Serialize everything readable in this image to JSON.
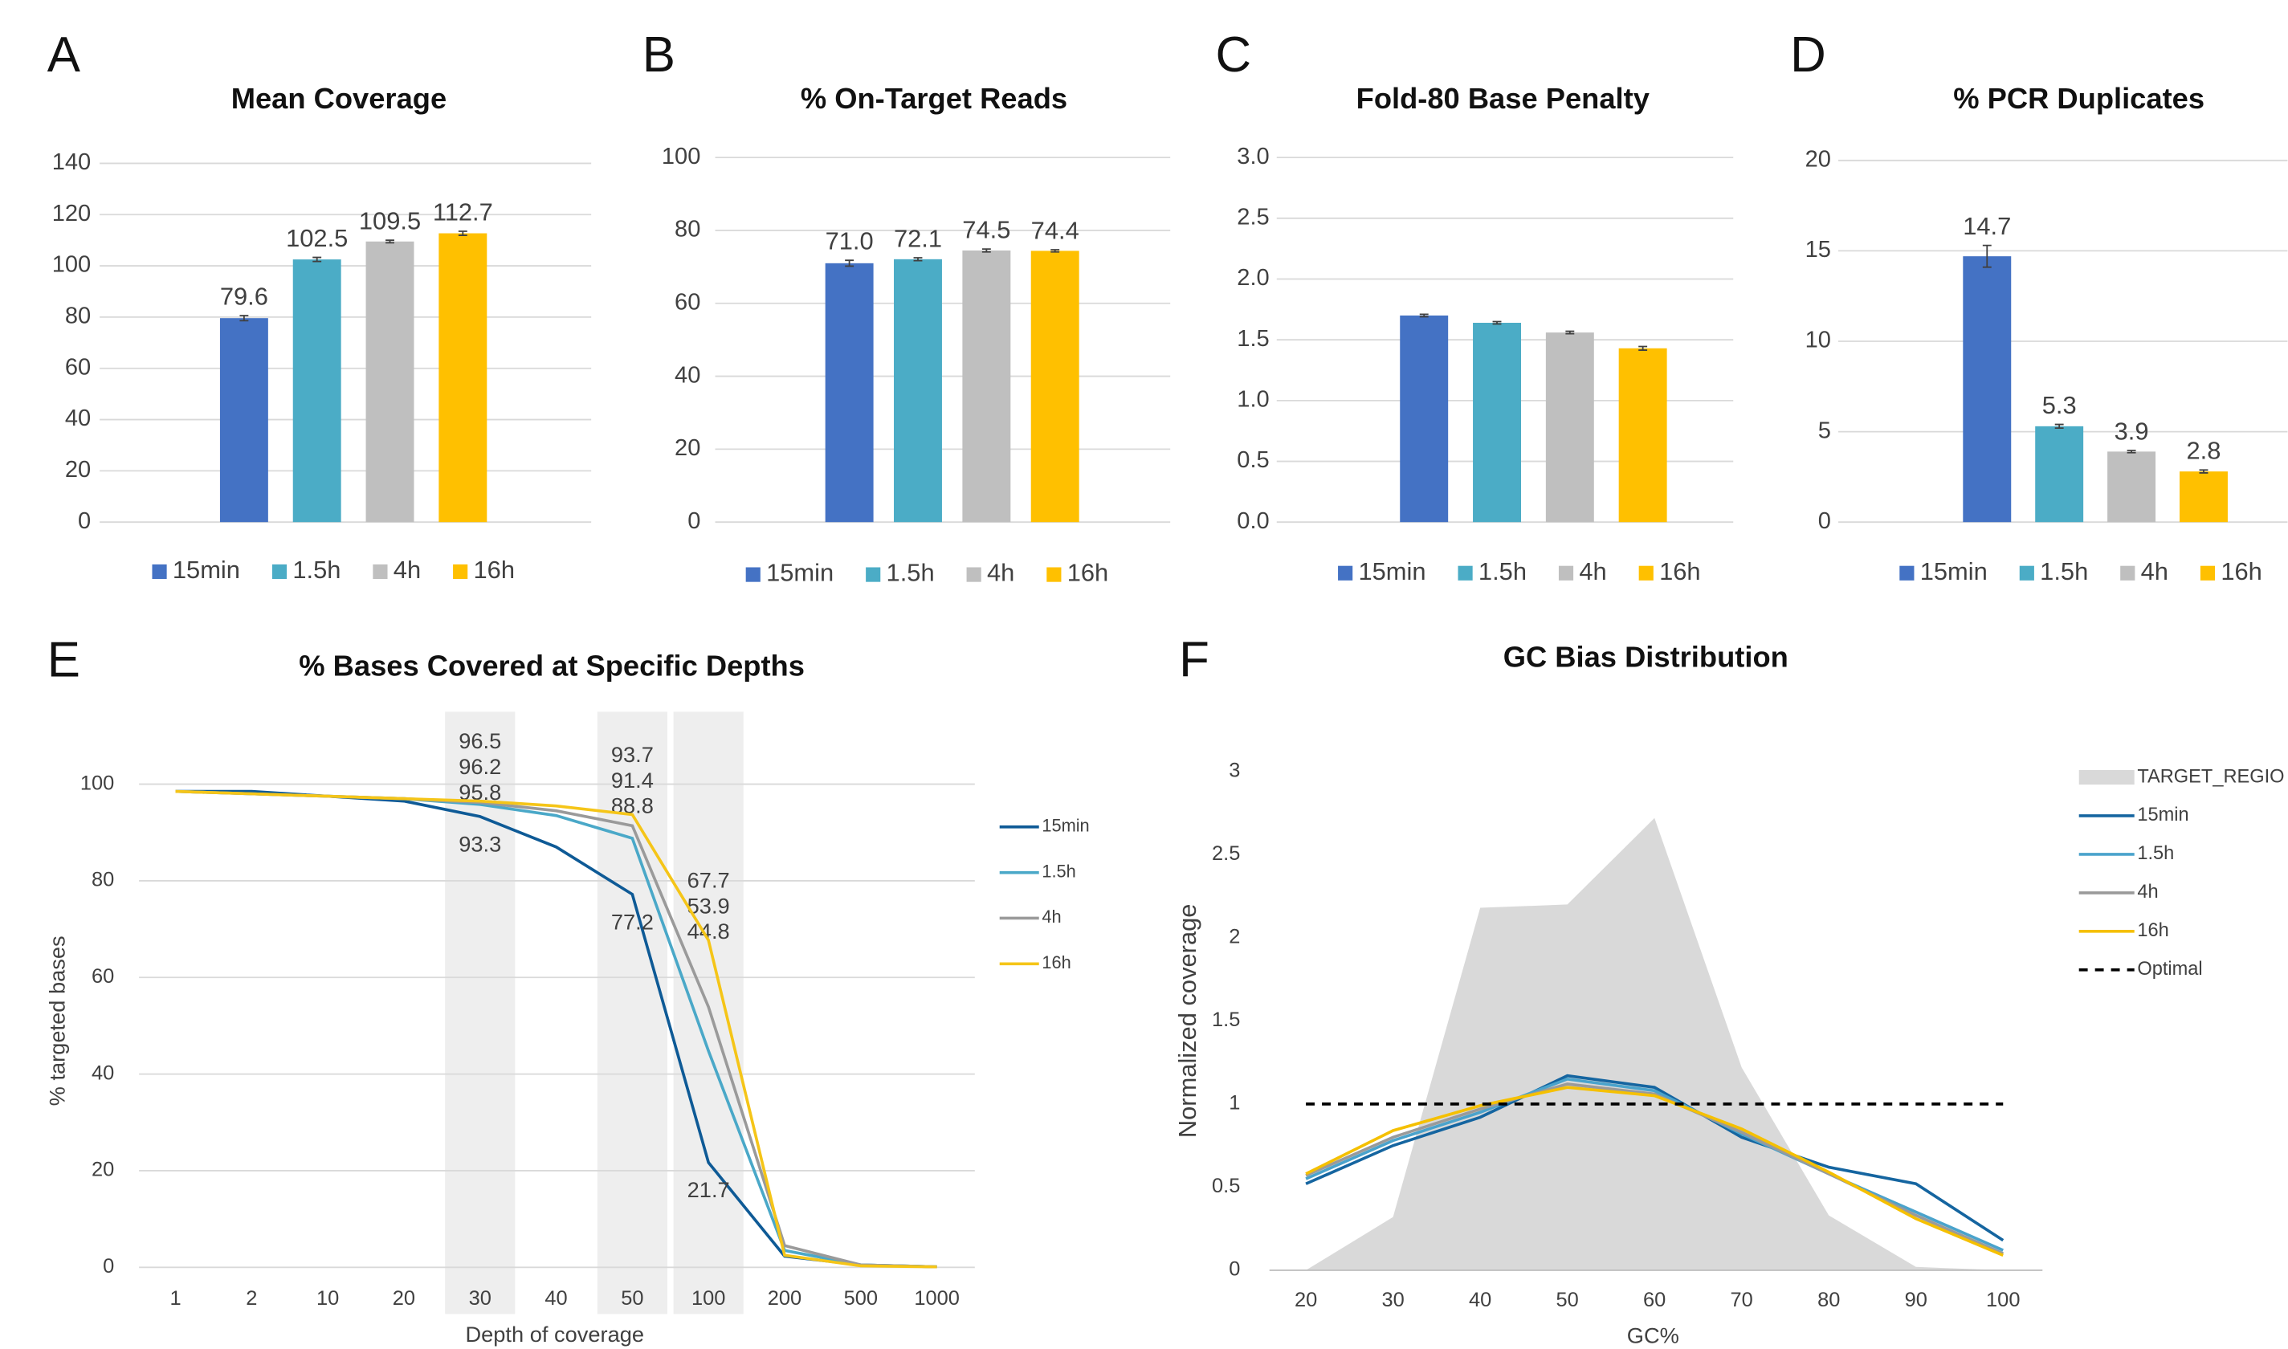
{
  "chart_data": [
    {
      "type": "bar",
      "label": "A",
      "title": "Mean Coverage",
      "categories": [
        "15min",
        "1.5h",
        "4h",
        "16h"
      ],
      "values": [
        79.6,
        102.5,
        109.5,
        112.7
      ],
      "errors": [
        1.0,
        0.8,
        0.5,
        0.8
      ],
      "data_labels": true,
      "colors": [
        "#4472c4",
        "#4bacc6",
        "#bfbfbf",
        "#ffc000"
      ],
      "ylim": [
        0,
        140
      ],
      "yticks": [
        0,
        20,
        40,
        60,
        80,
        100,
        120,
        140
      ],
      "grid": true
    },
    {
      "type": "bar",
      "label": "B",
      "title": "% On-Target Reads",
      "categories": [
        "15min",
        "1.5h",
        "4h",
        "16h"
      ],
      "values": [
        71.0,
        72.1,
        74.5,
        74.4
      ],
      "value_labels": [
        "71.0",
        "72.1",
        "74.5",
        "74.4"
      ],
      "errors": [
        0.8,
        0.4,
        0.4,
        0.3
      ],
      "data_labels": true,
      "colors": [
        "#4472c4",
        "#4bacc6",
        "#bfbfbf",
        "#ffc000"
      ],
      "ylim": [
        0,
        100
      ],
      "yticks": [
        0,
        20,
        40,
        60,
        80,
        100
      ],
      "grid": true
    },
    {
      "type": "bar",
      "label": "C",
      "title": "Fold-80 Base Penalty",
      "categories": [
        "15min",
        "1.5h",
        "4h",
        "16h"
      ],
      "values": [
        1.7,
        1.64,
        1.56,
        1.43
      ],
      "errors": [
        0.01,
        0.01,
        0.01,
        0.015
      ],
      "data_labels": false,
      "colors": [
        "#4472c4",
        "#4bacc6",
        "#bfbfbf",
        "#ffc000"
      ],
      "ylim": [
        0,
        3
      ],
      "yticks": [
        {
          "value": 0,
          "label": "0.0"
        },
        {
          "value": 0.5,
          "label": "0.5"
        },
        {
          "value": 1,
          "label": "1.0"
        },
        {
          "value": 1.5,
          "label": "1.5"
        },
        {
          "value": 2,
          "label": "2.0"
        },
        {
          "value": 2.5,
          "label": "2.5"
        },
        {
          "value": 3,
          "label": "3.0"
        }
      ],
      "grid": true
    },
    {
      "type": "bar",
      "label": "D",
      "title": "% PCR Duplicates",
      "categories": [
        "15min",
        "1.5h",
        "4h",
        "16h"
      ],
      "values": [
        14.7,
        5.3,
        3.9,
        2.8
      ],
      "errors": [
        0.6,
        0.1,
        0.06,
        0.08
      ],
      "data_labels": true,
      "colors": [
        "#4472c4",
        "#4bacc6",
        "#bfbfbf",
        "#ffc000"
      ],
      "ylim": [
        0,
        20
      ],
      "yticks": [
        0,
        5,
        10,
        15,
        20
      ],
      "grid": true
    },
    {
      "type": "line",
      "label": "E",
      "title": "% Bases Covered at Specific Depths",
      "x_label": "Depth of coverage",
      "y_label": "% targeted bases",
      "categories": [
        "1",
        "2",
        "10",
        "20",
        "30",
        "40",
        "50",
        "100",
        "200",
        "500",
        "1000"
      ],
      "series": [
        {
          "name": "15min",
          "color": "#0e5a96",
          "label_color": "#0e5a96",
          "values": [
            98.5,
            98.5,
            97.5,
            96.5,
            93.3,
            87,
            77.2,
            21.7,
            2.3,
            0.5,
            0.1
          ],
          "value_labels": [
            null,
            null,
            null,
            null,
            "93.3",
            null,
            "77.2",
            "21.7",
            null,
            null,
            null
          ]
        },
        {
          "name": "1.5h",
          "color": "#4aa8c8",
          "label_color": "#19a8be",
          "values": [
            98.5,
            98,
            97.5,
            97,
            95.8,
            93.5,
            88.8,
            44.8,
            3.5,
            0.5,
            0.1
          ],
          "value_labels": [
            null,
            null,
            null,
            null,
            "95.8",
            null,
            "88.8",
            "44.8",
            null,
            null,
            null
          ]
        },
        {
          "name": "4h",
          "color": "#9a9a9a",
          "label_color": "#777777",
          "values": [
            98.5,
            98,
            97.5,
            97,
            96.2,
            94.5,
            91.4,
            53.9,
            4.5,
            0.5,
            0.1
          ],
          "value_labels": [
            null,
            null,
            null,
            null,
            "96.2",
            null,
            "91.4",
            "53.9",
            null,
            null,
            null
          ]
        },
        {
          "name": "16h",
          "color": "#f5c518",
          "label_color": "#f29b2a",
          "values": [
            98.5,
            98,
            97.5,
            97,
            96.5,
            95.5,
            93.7,
            67.7,
            2.5,
            0.3,
            0.1
          ],
          "value_labels": [
            null,
            null,
            null,
            null,
            "96.5",
            null,
            "93.7",
            "67.7",
            null,
            null,
            null
          ]
        }
      ],
      "ylim": [
        0,
        115
      ],
      "yticks": [
        0,
        20,
        40,
        60,
        80,
        100
      ],
      "grid": true,
      "legend": "right"
    },
    {
      "type": "line",
      "label": "F",
      "title": "GC Bias Distribution",
      "x_label": "GC%",
      "y_label": "Normalized coverage",
      "x": [
        20,
        30,
        40,
        50,
        60,
        70,
        80,
        90,
        100
      ],
      "xlim": [
        20,
        100
      ],
      "xticks": [
        20,
        30,
        40,
        50,
        60,
        70,
        80,
        90,
        100
      ],
      "series": [
        {
          "name": "TARGET_REGIO",
          "color": "#d9d9d9",
          "style": "area",
          "values": [
            0,
            0.32,
            2.18,
            2.2,
            2.72,
            1.22,
            0.33,
            0.02,
            0
          ]
        },
        {
          "name": "15min",
          "color": "#1565a0",
          "style": "solid",
          "values": [
            0.52,
            0.75,
            0.92,
            1.17,
            1.1,
            0.8,
            0.62,
            0.52,
            0.18
          ]
        },
        {
          "name": "1.5h",
          "color": "#4aa3cc",
          "style": "solid",
          "values": [
            0.55,
            0.78,
            0.95,
            1.15,
            1.08,
            0.82,
            0.58,
            0.35,
            0.12
          ]
        },
        {
          "name": "4h",
          "color": "#9a9a9a",
          "style": "solid",
          "values": [
            0.57,
            0.8,
            0.97,
            1.12,
            1.06,
            0.83,
            0.58,
            0.33,
            0.1
          ]
        },
        {
          "name": "16h",
          "color": "#f5c000",
          "style": "solid",
          "values": [
            0.58,
            0.84,
            0.99,
            1.1,
            1.05,
            0.85,
            0.59,
            0.31,
            0.09
          ]
        },
        {
          "name": "Optimal",
          "color": "#000000",
          "style": "dashed",
          "values": [
            1,
            1,
            1,
            1,
            1,
            1,
            1,
            1,
            1
          ]
        }
      ],
      "ylim": [
        0,
        3
      ],
      "yticks": [
        0,
        0.5,
        1,
        1.5,
        2,
        2.5,
        3
      ],
      "grid": false,
      "legend": "right"
    }
  ]
}
